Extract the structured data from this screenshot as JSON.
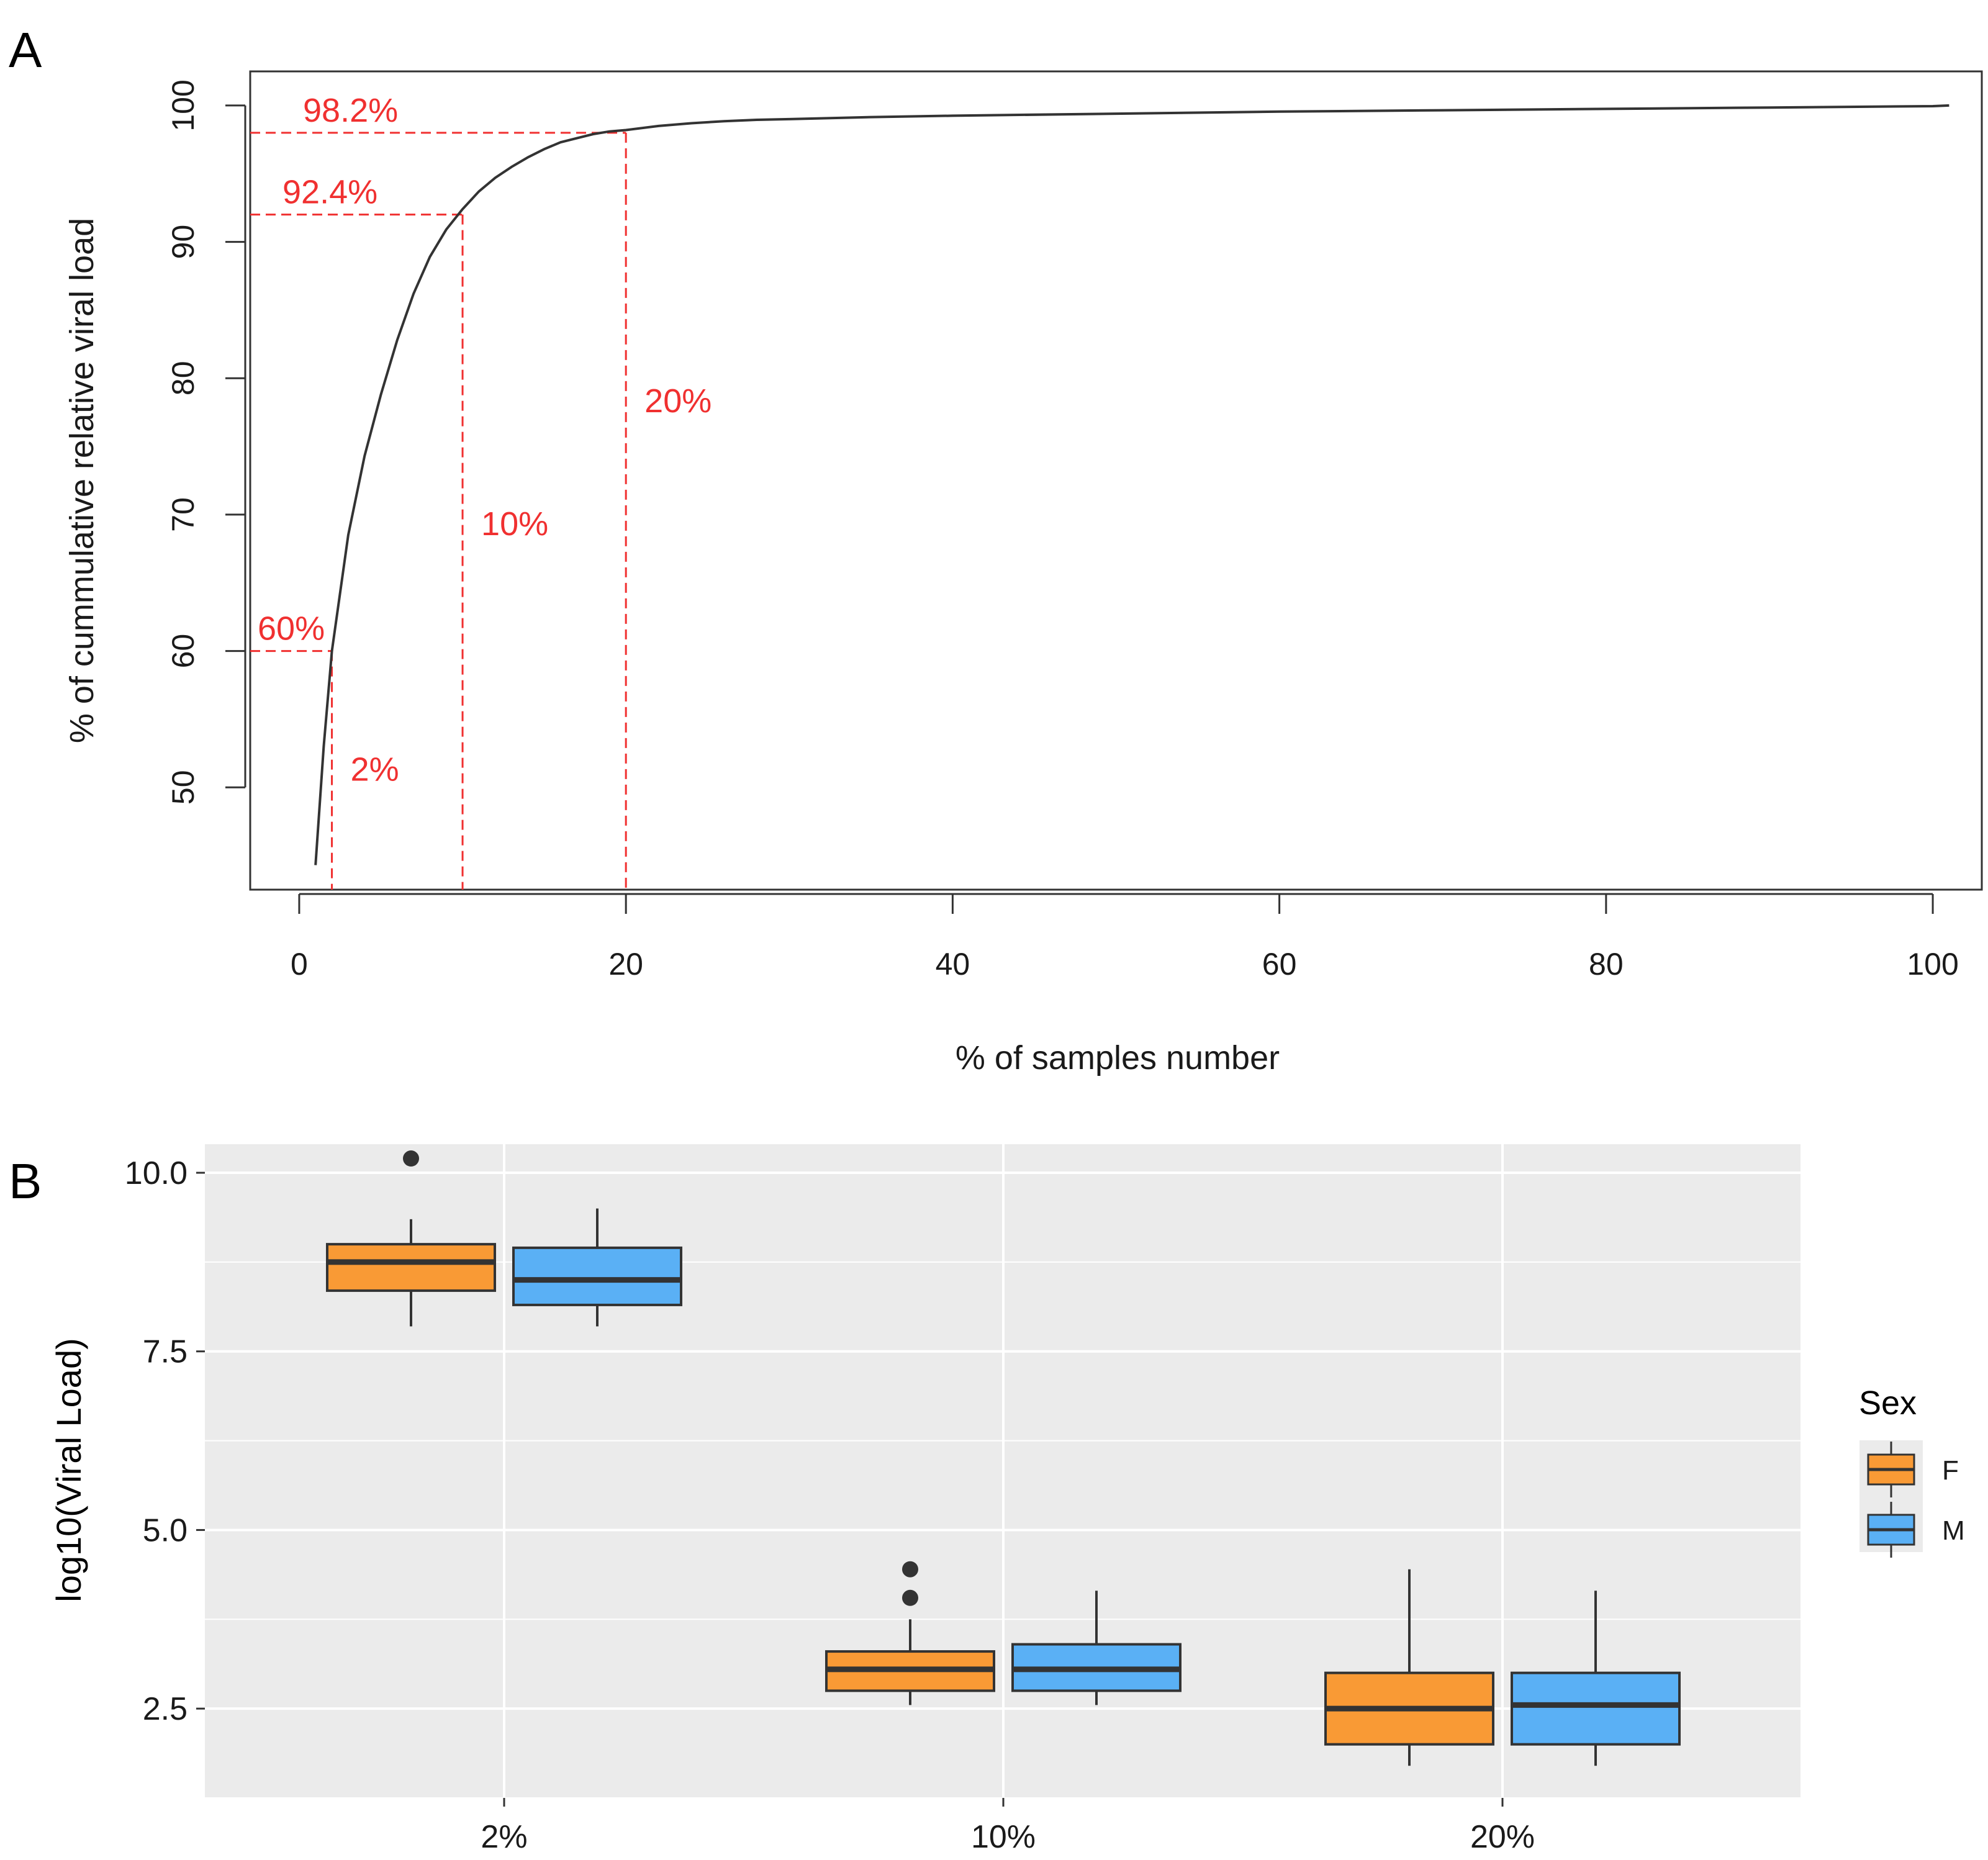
{
  "chart_data": [
    {
      "panel": "A",
      "type": "line",
      "title": "",
      "xlabel": "% of samples number",
      "ylabel": "% of cummulative relative viral load",
      "xlim": [
        -3,
        103
      ],
      "ylim": [
        42.5,
        102.5
      ],
      "xticks": [
        0,
        20,
        40,
        60,
        80,
        100
      ],
      "yticks": [
        50,
        60,
        70,
        80,
        90,
        100
      ],
      "colors": {
        "curve": "#333333",
        "annotation": "#f03030"
      },
      "series": [
        {
          "name": "cumulative viral load",
          "x": [
            1,
            1.5,
            2,
            3,
            4,
            5,
            6,
            7,
            8,
            9,
            10,
            11,
            12,
            13,
            14,
            15,
            16,
            17,
            18,
            19,
            20,
            22,
            24,
            26,
            28,
            30,
            35,
            40,
            50,
            60,
            70,
            80,
            90,
            100,
            101
          ],
          "y": [
            44.3,
            53,
            60,
            68.5,
            74.3,
            78.8,
            82.8,
            86.2,
            88.9,
            90.9,
            92.4,
            93.7,
            94.7,
            95.5,
            96.2,
            96.8,
            97.3,
            97.6,
            97.9,
            98.1,
            98.2,
            98.5,
            98.7,
            98.85,
            98.95,
            99.0,
            99.15,
            99.25,
            99.4,
            99.55,
            99.65,
            99.75,
            99.85,
            99.95,
            100
          ]
        }
      ],
      "annotations": [
        {
          "x": 2,
          "y": 60,
          "y_label": "60%",
          "x_label": "2%",
          "x_label_y": 50.5
        },
        {
          "x": 10,
          "y": 92,
          "y_label": "92.4%",
          "x_label": "10%",
          "x_label_y": 68.5
        },
        {
          "x": 20,
          "y": 98,
          "y_label": "98.2%",
          "x_label": "20%",
          "x_label_y": 77.5
        }
      ]
    },
    {
      "panel": "B",
      "type": "box",
      "title": "",
      "xlabel": "",
      "ylabel": "log10(Viral Load)",
      "categories": [
        "2%",
        "10%",
        "20%"
      ],
      "ylim": [
        1.25,
        10.4
      ],
      "yticks": [
        2.5,
        5.0,
        7.5,
        10.0
      ],
      "ytick_labels": [
        "2.5",
        "5.0",
        "7.5",
        "10.0"
      ],
      "minor_yticks": [
        1.25,
        3.75,
        6.25,
        8.75
      ],
      "legend": {
        "title": "Sex",
        "position": "right",
        "entries": [
          "F",
          "M"
        ]
      },
      "colors": {
        "F": "#f99a35",
        "M": "#5ab0f5",
        "panel_bg": "#ebebeb",
        "grid": "#ffffff",
        "outline": "#333333"
      },
      "series": [
        {
          "name": "F",
          "boxes": [
            {
              "category": "2%",
              "whisker_low": 7.85,
              "q1": 8.35,
              "median": 8.75,
              "q3": 9.0,
              "whisker_high": 9.35,
              "outliers": [
                10.2
              ]
            },
            {
              "category": "10%",
              "whisker_low": 2.55,
              "q1": 2.75,
              "median": 3.05,
              "q3": 3.3,
              "whisker_high": 3.75,
              "outliers": [
                4.05,
                4.45
              ]
            },
            {
              "category": "20%",
              "whisker_low": 1.7,
              "q1": 2.0,
              "median": 2.5,
              "q3": 3.0,
              "whisker_high": 4.45,
              "outliers": []
            }
          ]
        },
        {
          "name": "M",
          "boxes": [
            {
              "category": "2%",
              "whisker_low": 7.85,
              "q1": 8.15,
              "median": 8.5,
              "q3": 8.95,
              "whisker_high": 9.5,
              "outliers": []
            },
            {
              "category": "10%",
              "whisker_low": 2.55,
              "q1": 2.75,
              "median": 3.05,
              "q3": 3.4,
              "whisker_high": 4.15,
              "outliers": []
            },
            {
              "category": "20%",
              "whisker_low": 1.7,
              "q1": 2.0,
              "median": 2.55,
              "q3": 3.0,
              "whisker_high": 4.15,
              "outliers": []
            }
          ]
        }
      ]
    }
  ],
  "labels": {
    "panel_a": "A",
    "panel_b": "B"
  }
}
